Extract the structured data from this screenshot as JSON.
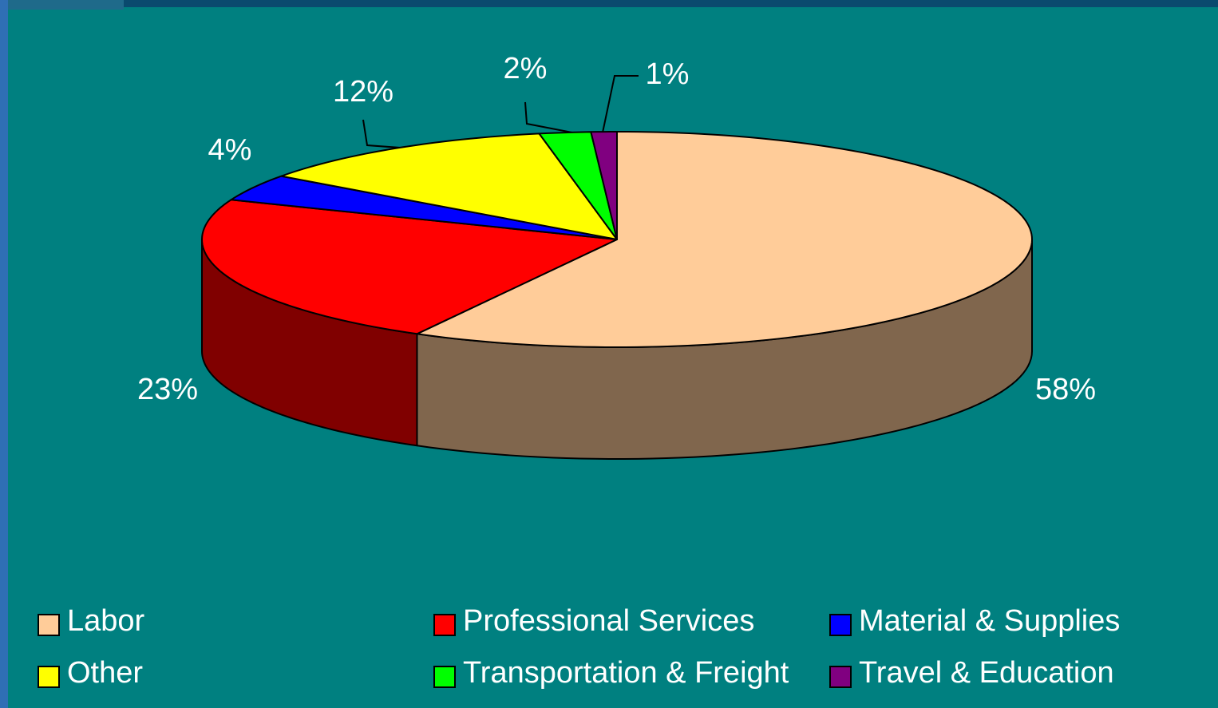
{
  "chart_data": {
    "type": "pie3d",
    "categories": [
      "Labor",
      "Professional Services",
      "Material & Supplies",
      "Other",
      "Transportation & Freight",
      "Travel & Education"
    ],
    "values": [
      58,
      23,
      4,
      12,
      2,
      1
    ],
    "value_labels": [
      "58%",
      "23%",
      "4%",
      "12%",
      "2%",
      "1%"
    ],
    "colors": [
      "#FFCC99",
      "#FF0000",
      "#0000FF",
      "#FFFF00",
      "#00FF00",
      "#800080"
    ],
    "legend": "bottom"
  }
}
